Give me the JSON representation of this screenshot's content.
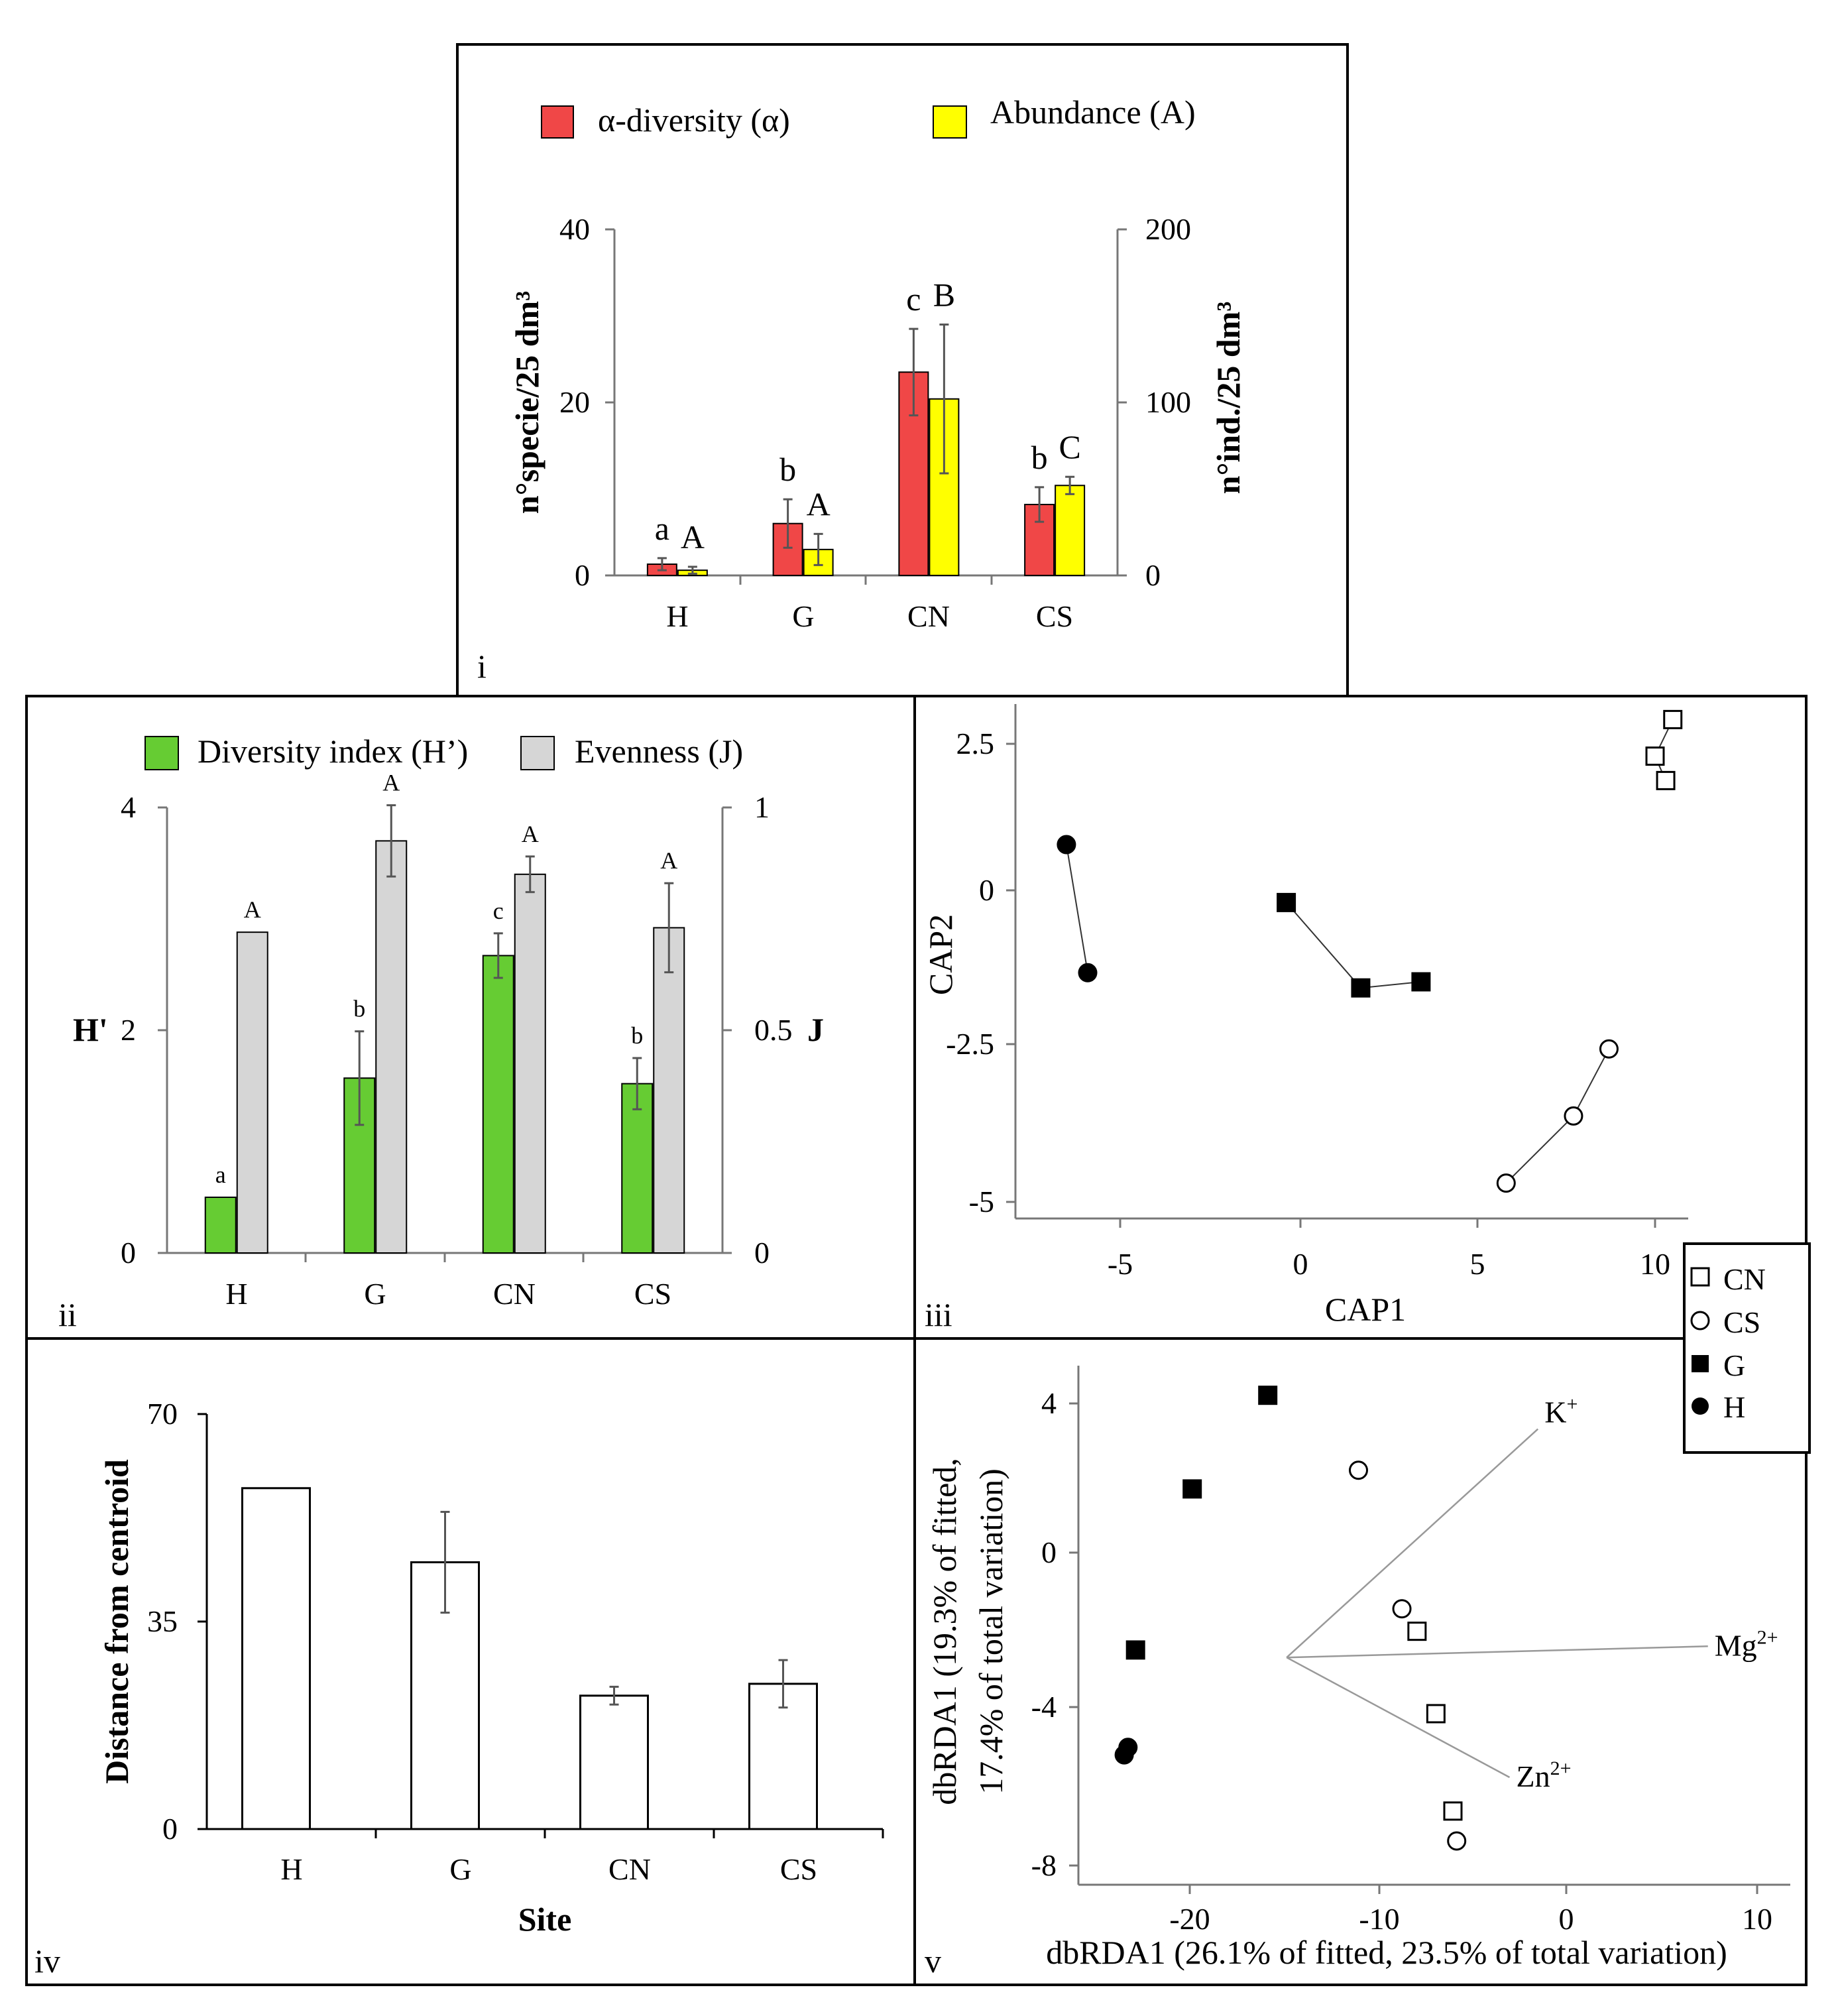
{
  "chart_data": [
    {
      "panel": "i",
      "type": "bar",
      "categories": [
        "H",
        "G",
        "CN",
        "CS"
      ],
      "legend": [
        "α-diversity (α)",
        "Abundance (A)"
      ],
      "ylabel_left": "n°specie/25 dm³",
      "ylabel_right": "n°ind./25 dm³",
      "ylim_left": [
        0,
        40
      ],
      "ylim_right": [
        0,
        200
      ],
      "yticks_left": [
        "0",
        "20",
        "40"
      ],
      "yticks_right": [
        "0",
        "100",
        "200"
      ],
      "series": [
        {
          "name": "α-diversity (α)",
          "axis": "left",
          "color": "#f04747",
          "values": [
            1.3,
            6.0,
            23.5,
            8.2
          ],
          "errors": [
            0.7,
            2.8,
            5.0,
            2.0
          ],
          "letters": [
            "a",
            "b",
            "c",
            "b"
          ]
        },
        {
          "name": "Abundance (A)",
          "axis": "right",
          "color": "#ffff00",
          "values": [
            3,
            15,
            102,
            52
          ],
          "errors": [
            2,
            9,
            43,
            5
          ],
          "letters": [
            "A",
            "A",
            "B",
            "C"
          ]
        }
      ]
    },
    {
      "panel": "ii",
      "type": "bar",
      "categories": [
        "H",
        "G",
        "CN",
        "CS"
      ],
      "legend": [
        "Diversity index (H’)",
        "Evenness (J)"
      ],
      "ylabel_left": "H'",
      "ylabel_right": "J",
      "ylim_left": [
        0,
        4
      ],
      "ylim_right": [
        0,
        1
      ],
      "yticks_left": [
        "0",
        "2",
        "4"
      ],
      "yticks_right": [
        "0",
        "0.5",
        "1"
      ],
      "series": [
        {
          "name": "Diversity index (H’)",
          "axis": "left",
          "color": "#66cc33",
          "values": [
            0.5,
            1.57,
            2.67,
            1.52
          ],
          "errors": [
            0,
            0.42,
            0.2,
            0.23
          ],
          "letters": [
            "a",
            "b",
            "c",
            "b"
          ]
        },
        {
          "name": "Evenness (J)",
          "axis": "right",
          "color": "#d6d6d6",
          "values": [
            0.72,
            0.925,
            0.85,
            0.73
          ],
          "errors": [
            0,
            0.08,
            0.04,
            0.1
          ],
          "letters": [
            "A",
            "A",
            "A",
            "A"
          ]
        }
      ]
    },
    {
      "panel": "iii",
      "type": "scatter",
      "xlabel": "CAP1",
      "ylabel": "CAP2",
      "xlim": [
        -8,
        11
      ],
      "ylim": [
        -5.2,
        3.2
      ],
      "xticks": [
        "-5",
        "0",
        "5",
        "10"
      ],
      "yticks": [
        "2.5",
        "0",
        "-2.5",
        "-5"
      ],
      "legend": [
        "CN",
        "CS",
        "G",
        "H"
      ],
      "series": [
        {
          "name": "H",
          "marker": "filled-circle",
          "x": [
            -6.6,
            -6.0
          ],
          "y": [
            0.75,
            -1.35
          ]
        },
        {
          "name": "G",
          "marker": "filled-square",
          "x": [
            -0.4,
            1.7,
            3.4
          ],
          "y": [
            -0.2,
            -1.6,
            -1.5
          ]
        },
        {
          "name": "CN",
          "marker": "open-square",
          "x": [
            10.0,
            10.5,
            10.3
          ],
          "y": [
            2.2,
            2.8,
            1.8
          ]
        },
        {
          "name": "CS",
          "marker": "open-circle",
          "x": [
            5.8,
            7.7,
            8.7
          ],
          "y": [
            -4.8,
            -3.7,
            -2.6
          ]
        }
      ]
    },
    {
      "panel": "iv",
      "type": "bar",
      "categories": [
        "H",
        "G",
        "CN",
        "CS"
      ],
      "xlabel": "Site",
      "ylabel": "Distance from centroid",
      "ylim": [
        0,
        70
      ],
      "yticks": [
        "0",
        "35",
        "70"
      ],
      "values": [
        57.5,
        45.0,
        22.5,
        24.5
      ],
      "errors": [
        0,
        8.5,
        1.5,
        4.0
      ]
    },
    {
      "panel": "v",
      "type": "scatter",
      "xlabel": "dbRDA1 (26.1% of fitted, 23.5% of total variation)",
      "ylabel_line1": "dbRDA1 (19.3% of fitted,",
      "ylabel_line2": "17.4% of total variation)",
      "xlim": [
        -26,
        11
      ],
      "ylim": [
        -8.3,
        4.8
      ],
      "xticks": [
        "-20",
        "-10",
        "0",
        "10"
      ],
      "yticks": [
        "4",
        "0",
        "-4",
        "-8"
      ],
      "series": [
        {
          "name": "G",
          "marker": "filled-square",
          "x": [
            -15.8,
            -19.8,
            -22.8
          ],
          "y": [
            4.2,
            1.7,
            -2.6
          ]
        },
        {
          "name": "H",
          "marker": "filled-circle",
          "x": [
            -23.4,
            -23.2
          ],
          "y": [
            -5.4,
            -5.2
          ]
        },
        {
          "name": "CS",
          "marker": "open-circle",
          "x": [
            -11.0,
            -8.7,
            -5.8
          ],
          "y": [
            2.2,
            -1.5,
            -7.7
          ]
        },
        {
          "name": "CN",
          "marker": "open-square",
          "x": [
            -7.9,
            -6.9,
            -6.0
          ],
          "y": [
            -2.1,
            -4.3,
            -6.9
          ]
        }
      ],
      "vectors": [
        {
          "label": "K",
          "sup": "+",
          "x": -1.5,
          "y": 3.3
        },
        {
          "label": "Mg",
          "sup": "2+",
          "x": 7.5,
          "y": -2.5
        },
        {
          "label": "Zn",
          "sup": "2+",
          "x": -3.0,
          "y": -6.0
        }
      ],
      "vector_origin": [
        -14.8,
        -2.8
      ]
    }
  ],
  "panel_labels": [
    "i",
    "ii",
    "iii",
    "iv",
    "v"
  ]
}
